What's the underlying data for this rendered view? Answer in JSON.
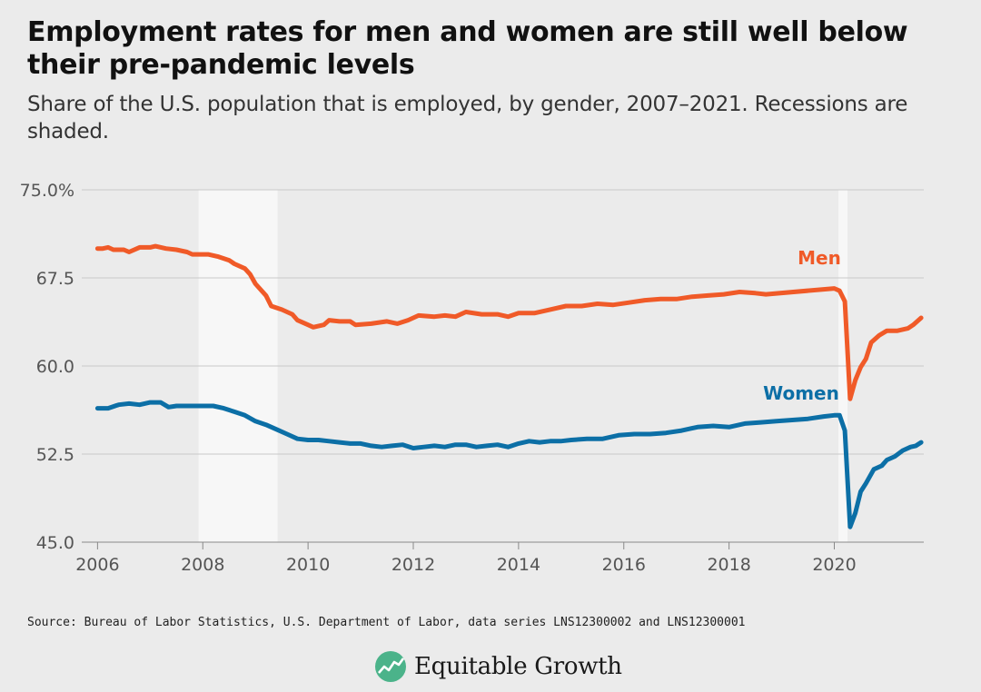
{
  "title": "Employment rates for men and women are still well below their pre-pandemic levels",
  "subtitle": "Share of the U.S. population that is employed, by gender, 2007–2021. Recessions are shaded.",
  "source": "Source: Bureau of Labor Statistics, U.S. Department of Labor, data series LNS12300002 and LNS12300001",
  "logo_text": "Equitable Growth",
  "colors": {
    "men": "#f05a28",
    "women": "#0c6fa6",
    "recession": "#f7f7f7",
    "grid": "#c8c8c8",
    "background": "#ebebeb",
    "logo_icon": "#4bb38a"
  },
  "chart_data": {
    "type": "line",
    "title": "Employment rates for men and women are still well below their pre-pandemic levels",
    "subtitle": "Share of the U.S. population that is employed, by gender, 2007–2021. Recessions are shaded.",
    "xlabel": "",
    "ylabel": "",
    "xlim": [
      2005.7,
      2021.7
    ],
    "ylim": [
      45.0,
      75.0
    ],
    "y_ticks": [
      45.0,
      52.5,
      60.0,
      67.5,
      75.0
    ],
    "y_tick_labels": [
      "45.0",
      "52.5",
      "60.0",
      "67.5",
      "75.0%"
    ],
    "x_ticks": [
      2006,
      2008,
      2010,
      2012,
      2014,
      2016,
      2018,
      2020
    ],
    "x_tick_labels": [
      "2006",
      "2008",
      "2010",
      "2012",
      "2014",
      "2016",
      "2018",
      "2020"
    ],
    "grid": "horizontal",
    "recessions": [
      [
        2007.92,
        2009.42
      ],
      [
        2020.08,
        2020.25
      ]
    ],
    "series": [
      {
        "name": "Men",
        "points": [
          [
            2006.0,
            70.0
          ],
          [
            2006.1,
            70.0
          ],
          [
            2006.2,
            70.1
          ],
          [
            2006.3,
            69.9
          ],
          [
            2006.5,
            69.9
          ],
          [
            2006.6,
            69.7
          ],
          [
            2006.8,
            70.1
          ],
          [
            2007.0,
            70.1
          ],
          [
            2007.1,
            70.2
          ],
          [
            2007.3,
            70.0
          ],
          [
            2007.5,
            69.9
          ],
          [
            2007.7,
            69.7
          ],
          [
            2007.8,
            69.5
          ],
          [
            2008.0,
            69.5
          ],
          [
            2008.1,
            69.5
          ],
          [
            2008.3,
            69.3
          ],
          [
            2008.5,
            69.0
          ],
          [
            2008.6,
            68.7
          ],
          [
            2008.8,
            68.3
          ],
          [
            2008.9,
            67.8
          ],
          [
            2009.0,
            67.0
          ],
          [
            2009.2,
            66.0
          ],
          [
            2009.3,
            65.1
          ],
          [
            2009.5,
            64.8
          ],
          [
            2009.7,
            64.4
          ],
          [
            2009.8,
            63.9
          ],
          [
            2010.0,
            63.5
          ],
          [
            2010.1,
            63.3
          ],
          [
            2010.3,
            63.5
          ],
          [
            2010.4,
            63.9
          ],
          [
            2010.6,
            63.8
          ],
          [
            2010.8,
            63.8
          ],
          [
            2010.9,
            63.5
          ],
          [
            2011.2,
            63.6
          ],
          [
            2011.5,
            63.8
          ],
          [
            2011.7,
            63.6
          ],
          [
            2011.9,
            63.9
          ],
          [
            2012.1,
            64.3
          ],
          [
            2012.4,
            64.2
          ],
          [
            2012.6,
            64.3
          ],
          [
            2012.8,
            64.2
          ],
          [
            2013.0,
            64.6
          ],
          [
            2013.3,
            64.4
          ],
          [
            2013.6,
            64.4
          ],
          [
            2013.8,
            64.2
          ],
          [
            2014.0,
            64.5
          ],
          [
            2014.3,
            64.5
          ],
          [
            2014.6,
            64.8
          ],
          [
            2014.9,
            65.1
          ],
          [
            2015.2,
            65.1
          ],
          [
            2015.5,
            65.3
          ],
          [
            2015.8,
            65.2
          ],
          [
            2016.1,
            65.4
          ],
          [
            2016.4,
            65.6
          ],
          [
            2016.7,
            65.7
          ],
          [
            2017.0,
            65.7
          ],
          [
            2017.3,
            65.9
          ],
          [
            2017.6,
            66.0
          ],
          [
            2017.9,
            66.1
          ],
          [
            2018.2,
            66.3
          ],
          [
            2018.5,
            66.2
          ],
          [
            2018.7,
            66.1
          ],
          [
            2020.0,
            66.6
          ],
          [
            2020.1,
            66.4
          ],
          [
            2020.2,
            65.5
          ],
          [
            2020.3,
            57.2
          ],
          [
            2020.4,
            58.8
          ],
          [
            2020.5,
            59.9
          ],
          [
            2020.6,
            60.6
          ],
          [
            2020.7,
            62.0
          ],
          [
            2020.85,
            62.6
          ],
          [
            2021.0,
            63.0
          ],
          [
            2021.2,
            63.0
          ],
          [
            2021.4,
            63.2
          ],
          [
            2021.5,
            63.5
          ],
          [
            2021.65,
            64.1
          ]
        ]
      },
      {
        "name": "Women",
        "points": [
          [
            2006.0,
            56.4
          ],
          [
            2006.2,
            56.4
          ],
          [
            2006.4,
            56.7
          ],
          [
            2006.6,
            56.8
          ],
          [
            2006.8,
            56.7
          ],
          [
            2007.0,
            56.9
          ],
          [
            2007.2,
            56.9
          ],
          [
            2007.35,
            56.5
          ],
          [
            2007.5,
            56.6
          ],
          [
            2007.7,
            56.6
          ],
          [
            2008.0,
            56.6
          ],
          [
            2008.2,
            56.6
          ],
          [
            2008.4,
            56.4
          ],
          [
            2008.6,
            56.1
          ],
          [
            2008.8,
            55.8
          ],
          [
            2009.0,
            55.3
          ],
          [
            2009.2,
            55.0
          ],
          [
            2009.4,
            54.6
          ],
          [
            2009.6,
            54.2
          ],
          [
            2009.8,
            53.8
          ],
          [
            2010.0,
            53.7
          ],
          [
            2010.2,
            53.7
          ],
          [
            2010.4,
            53.6
          ],
          [
            2010.6,
            53.5
          ],
          [
            2010.8,
            53.4
          ],
          [
            2011.0,
            53.4
          ],
          [
            2011.2,
            53.2
          ],
          [
            2011.4,
            53.1
          ],
          [
            2011.6,
            53.2
          ],
          [
            2011.8,
            53.3
          ],
          [
            2012.0,
            53.0
          ],
          [
            2012.2,
            53.1
          ],
          [
            2012.4,
            53.2
          ],
          [
            2012.6,
            53.1
          ],
          [
            2012.8,
            53.3
          ],
          [
            2013.0,
            53.3
          ],
          [
            2013.2,
            53.1
          ],
          [
            2013.4,
            53.2
          ],
          [
            2013.6,
            53.3
          ],
          [
            2013.8,
            53.1
          ],
          [
            2014.0,
            53.4
          ],
          [
            2014.2,
            53.6
          ],
          [
            2014.4,
            53.5
          ],
          [
            2014.6,
            53.6
          ],
          [
            2014.8,
            53.6
          ],
          [
            2015.0,
            53.7
          ],
          [
            2015.3,
            53.8
          ],
          [
            2015.6,
            53.8
          ],
          [
            2015.9,
            54.1
          ],
          [
            2016.2,
            54.2
          ],
          [
            2016.5,
            54.2
          ],
          [
            2016.8,
            54.3
          ],
          [
            2017.1,
            54.5
          ],
          [
            2017.4,
            54.8
          ],
          [
            2017.7,
            54.9
          ],
          [
            2018.0,
            54.8
          ],
          [
            2018.3,
            55.1
          ],
          [
            2018.6,
            55.2
          ],
          [
            2018.9,
            55.3
          ],
          [
            2019.2,
            55.4
          ],
          [
            2019.5,
            55.5
          ],
          [
            2019.8,
            55.7
          ],
          [
            2020.0,
            55.8
          ],
          [
            2020.1,
            55.8
          ],
          [
            2020.2,
            54.5
          ],
          [
            2020.3,
            46.3
          ],
          [
            2020.4,
            47.5
          ],
          [
            2020.5,
            49.3
          ],
          [
            2020.6,
            50.0
          ],
          [
            2020.75,
            51.2
          ],
          [
            2020.9,
            51.5
          ],
          [
            2021.0,
            52.0
          ],
          [
            2021.15,
            52.3
          ],
          [
            2021.3,
            52.8
          ],
          [
            2021.45,
            53.1
          ],
          [
            2021.55,
            53.2
          ],
          [
            2021.65,
            53.5
          ]
        ]
      }
    ]
  }
}
